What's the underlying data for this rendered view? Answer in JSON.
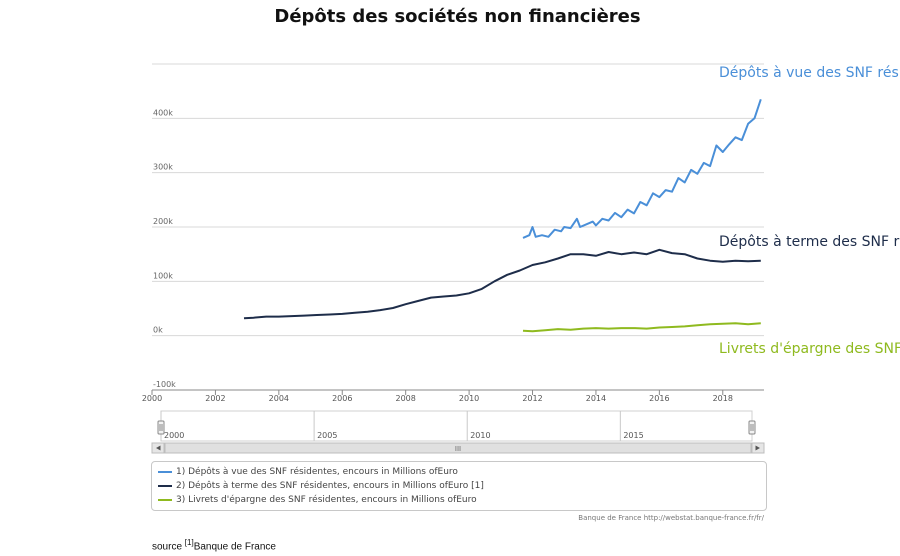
{
  "page": {
    "title": "Dépôts des sociétés non financières"
  },
  "chart_data": {
    "type": "line",
    "title": "Dépôts des sociétés non financières",
    "y_axis": {
      "ticks": [
        "-100k",
        "0k",
        "100k",
        "200k",
        "300k",
        "400k"
      ],
      "tick_values": [
        -100000,
        0,
        100000,
        200000,
        300000,
        400000
      ],
      "range": [
        -100000,
        500000
      ]
    },
    "x_axis": {
      "ticks": [
        "2000",
        "2002",
        "2004",
        "2006",
        "2008",
        "2010",
        "2012",
        "2014",
        "2016",
        "2018"
      ],
      "range": [
        2000,
        2019.3
      ]
    },
    "grid": true,
    "series": [
      {
        "name": "1) Dépôts à vue des SNF résidentes, encours in Millions ofEuro",
        "end_label": "Dépôts à vue des SNF rés",
        "color": "#4a8fd8",
        "points": [
          [
            2011.7,
            180000
          ],
          [
            2011.9,
            185000
          ],
          [
            2012.0,
            200000
          ],
          [
            2012.1,
            182000
          ],
          [
            2012.3,
            185000
          ],
          [
            2012.5,
            182000
          ],
          [
            2012.7,
            195000
          ],
          [
            2012.9,
            192000
          ],
          [
            2013.0,
            200000
          ],
          [
            2013.2,
            198000
          ],
          [
            2013.4,
            215000
          ],
          [
            2013.5,
            200000
          ],
          [
            2013.7,
            205000
          ],
          [
            2013.9,
            210000
          ],
          [
            2014.0,
            203000
          ],
          [
            2014.2,
            215000
          ],
          [
            2014.4,
            212000
          ],
          [
            2014.6,
            226000
          ],
          [
            2014.8,
            218000
          ],
          [
            2015.0,
            232000
          ],
          [
            2015.2,
            225000
          ],
          [
            2015.4,
            246000
          ],
          [
            2015.6,
            240000
          ],
          [
            2015.8,
            262000
          ],
          [
            2016.0,
            255000
          ],
          [
            2016.2,
            268000
          ],
          [
            2016.4,
            265000
          ],
          [
            2016.6,
            290000
          ],
          [
            2016.8,
            282000
          ],
          [
            2017.0,
            305000
          ],
          [
            2017.2,
            298000
          ],
          [
            2017.4,
            318000
          ],
          [
            2017.6,
            312000
          ],
          [
            2017.8,
            350000
          ],
          [
            2018.0,
            338000
          ],
          [
            2018.2,
            352000
          ],
          [
            2018.4,
            365000
          ],
          [
            2018.6,
            360000
          ],
          [
            2018.8,
            390000
          ],
          [
            2019.0,
            400000
          ],
          [
            2019.2,
            435000
          ]
        ]
      },
      {
        "name": "2) Dépôts à terme des SNF résidentes, encours in Millions ofEuro [1]",
        "end_label": "Dépôts à terme des SNF r",
        "color": "#1e2d4a",
        "points": [
          [
            2002.9,
            32000
          ],
          [
            2003.2,
            33000
          ],
          [
            2003.6,
            35000
          ],
          [
            2004.0,
            35000
          ],
          [
            2004.4,
            36000
          ],
          [
            2004.8,
            37000
          ],
          [
            2005.2,
            38000
          ],
          [
            2005.6,
            39000
          ],
          [
            2006.0,
            40000
          ],
          [
            2006.4,
            42000
          ],
          [
            2006.8,
            44000
          ],
          [
            2007.2,
            47000
          ],
          [
            2007.6,
            51000
          ],
          [
            2008.0,
            58000
          ],
          [
            2008.4,
            64000
          ],
          [
            2008.8,
            70000
          ],
          [
            2009.2,
            72000
          ],
          [
            2009.6,
            74000
          ],
          [
            2010.0,
            78000
          ],
          [
            2010.4,
            86000
          ],
          [
            2010.8,
            100000
          ],
          [
            2011.2,
            112000
          ],
          [
            2011.6,
            120000
          ],
          [
            2012.0,
            130000
          ],
          [
            2012.4,
            135000
          ],
          [
            2012.8,
            142000
          ],
          [
            2013.2,
            150000
          ],
          [
            2013.6,
            150000
          ],
          [
            2014.0,
            147000
          ],
          [
            2014.4,
            154000
          ],
          [
            2014.8,
            150000
          ],
          [
            2015.2,
            153000
          ],
          [
            2015.6,
            150000
          ],
          [
            2016.0,
            158000
          ],
          [
            2016.4,
            152000
          ],
          [
            2016.8,
            150000
          ],
          [
            2017.2,
            142000
          ],
          [
            2017.6,
            138000
          ],
          [
            2018.0,
            136000
          ],
          [
            2018.4,
            138000
          ],
          [
            2018.8,
            137000
          ],
          [
            2019.2,
            138000
          ]
        ]
      },
      {
        "name": "3) Livrets d'épargne des SNF résidentes, encours in Millions ofEuro",
        "end_label": "Livrets d'épargne des SNF",
        "color": "#8fba1f",
        "points": [
          [
            2011.7,
            9000
          ],
          [
            2012.0,
            8000
          ],
          [
            2012.4,
            10000
          ],
          [
            2012.8,
            12000
          ],
          [
            2013.2,
            11000
          ],
          [
            2013.6,
            13000
          ],
          [
            2014.0,
            14000
          ],
          [
            2014.4,
            13000
          ],
          [
            2014.8,
            14000
          ],
          [
            2015.2,
            14000
          ],
          [
            2015.6,
            13000
          ],
          [
            2016.0,
            15000
          ],
          [
            2016.4,
            16000
          ],
          [
            2016.8,
            17000
          ],
          [
            2017.2,
            19000
          ],
          [
            2017.6,
            21000
          ],
          [
            2018.0,
            22000
          ],
          [
            2018.4,
            23000
          ],
          [
            2018.8,
            21000
          ],
          [
            2019.2,
            23000
          ]
        ]
      }
    ],
    "navigator": {
      "labels": [
        "2000",
        "2005",
        "2010",
        "2015"
      ],
      "range": [
        2000,
        2019.3
      ]
    }
  },
  "credit": "Banque de France http://webstat.banque-france.fr/fr/",
  "footer": {
    "prefix": "source ",
    "ref": "[1]",
    "text": "Banque de France"
  },
  "scrollbar": {
    "grip": "III"
  }
}
